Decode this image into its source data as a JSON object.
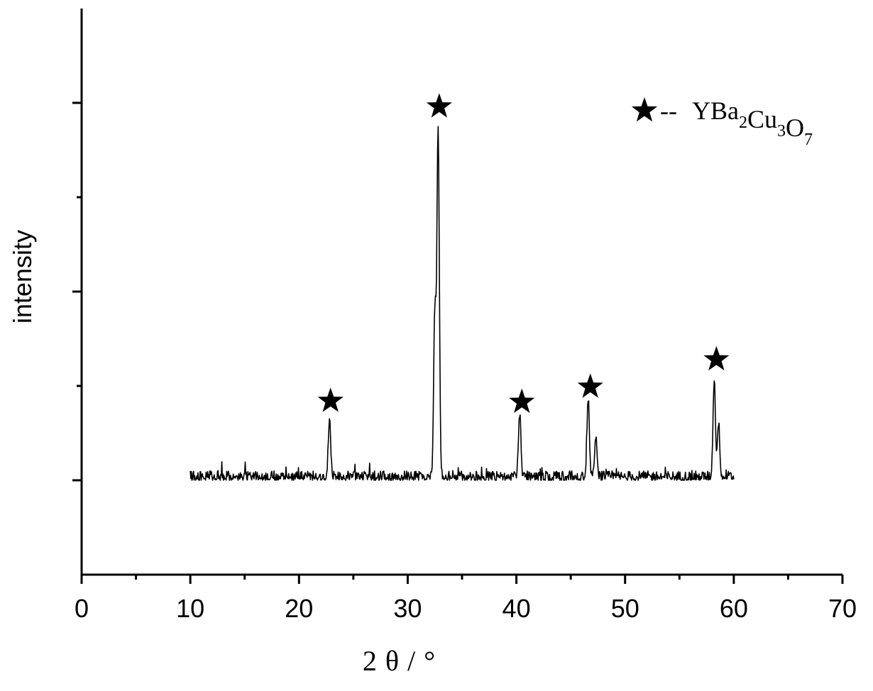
{
  "chart_data": {
    "type": "line",
    "title": "",
    "xlabel": "2θ/°",
    "ylabel": "intensity",
    "xlim": [
      0,
      70
    ],
    "ylim": [
      0,
      6
    ],
    "x_major_ticks": [
      0,
      10,
      20,
      30,
      40,
      50,
      60,
      70
    ],
    "x_tick_labels": [
      "0",
      "10",
      "20",
      "30",
      "40",
      "50",
      "60",
      "70"
    ],
    "x_minor_ticks": [
      5,
      15,
      25,
      35,
      45,
      55,
      65
    ],
    "y_major_ticks": [
      1,
      3,
      5
    ],
    "y_minor_ticks": [
      2,
      4
    ],
    "y_tick_labels_shown": false,
    "grid": false,
    "series": [
      {
        "x_start": 10,
        "x_end": 60,
        "baseline": 1.0,
        "noise_level": 0.1,
        "peaks": [
          {
            "x": 22.8,
            "y": 1.6
          },
          {
            "x": 32.5,
            "y": 2.75
          },
          {
            "x": 32.8,
            "y": 4.7
          },
          {
            "x": 40.3,
            "y": 1.67
          },
          {
            "x": 46.6,
            "y": 1.83
          },
          {
            "x": 47.3,
            "y": 1.42
          },
          {
            "x": 58.2,
            "y": 2.04
          },
          {
            "x": 58.6,
            "y": 1.57
          }
        ]
      }
    ],
    "annotations": [
      {
        "symbol": "★",
        "x": 22.9,
        "y": 1.84
      },
      {
        "symbol": "★",
        "x": 32.9,
        "y": 4.96
      },
      {
        "symbol": "★",
        "x": 40.5,
        "y": 1.83
      },
      {
        "symbol": "★",
        "x": 46.8,
        "y": 1.99
      },
      {
        "symbol": "★",
        "x": 58.4,
        "y": 2.28
      }
    ],
    "legend": {
      "position": "top-right",
      "symbol": "★",
      "dash": "--",
      "formula_parts": [
        {
          "text": "YBa",
          "sub": "2"
        },
        {
          "text": "Cu",
          "sub": "3"
        },
        {
          "text": "O",
          "sub": "7"
        }
      ]
    }
  }
}
